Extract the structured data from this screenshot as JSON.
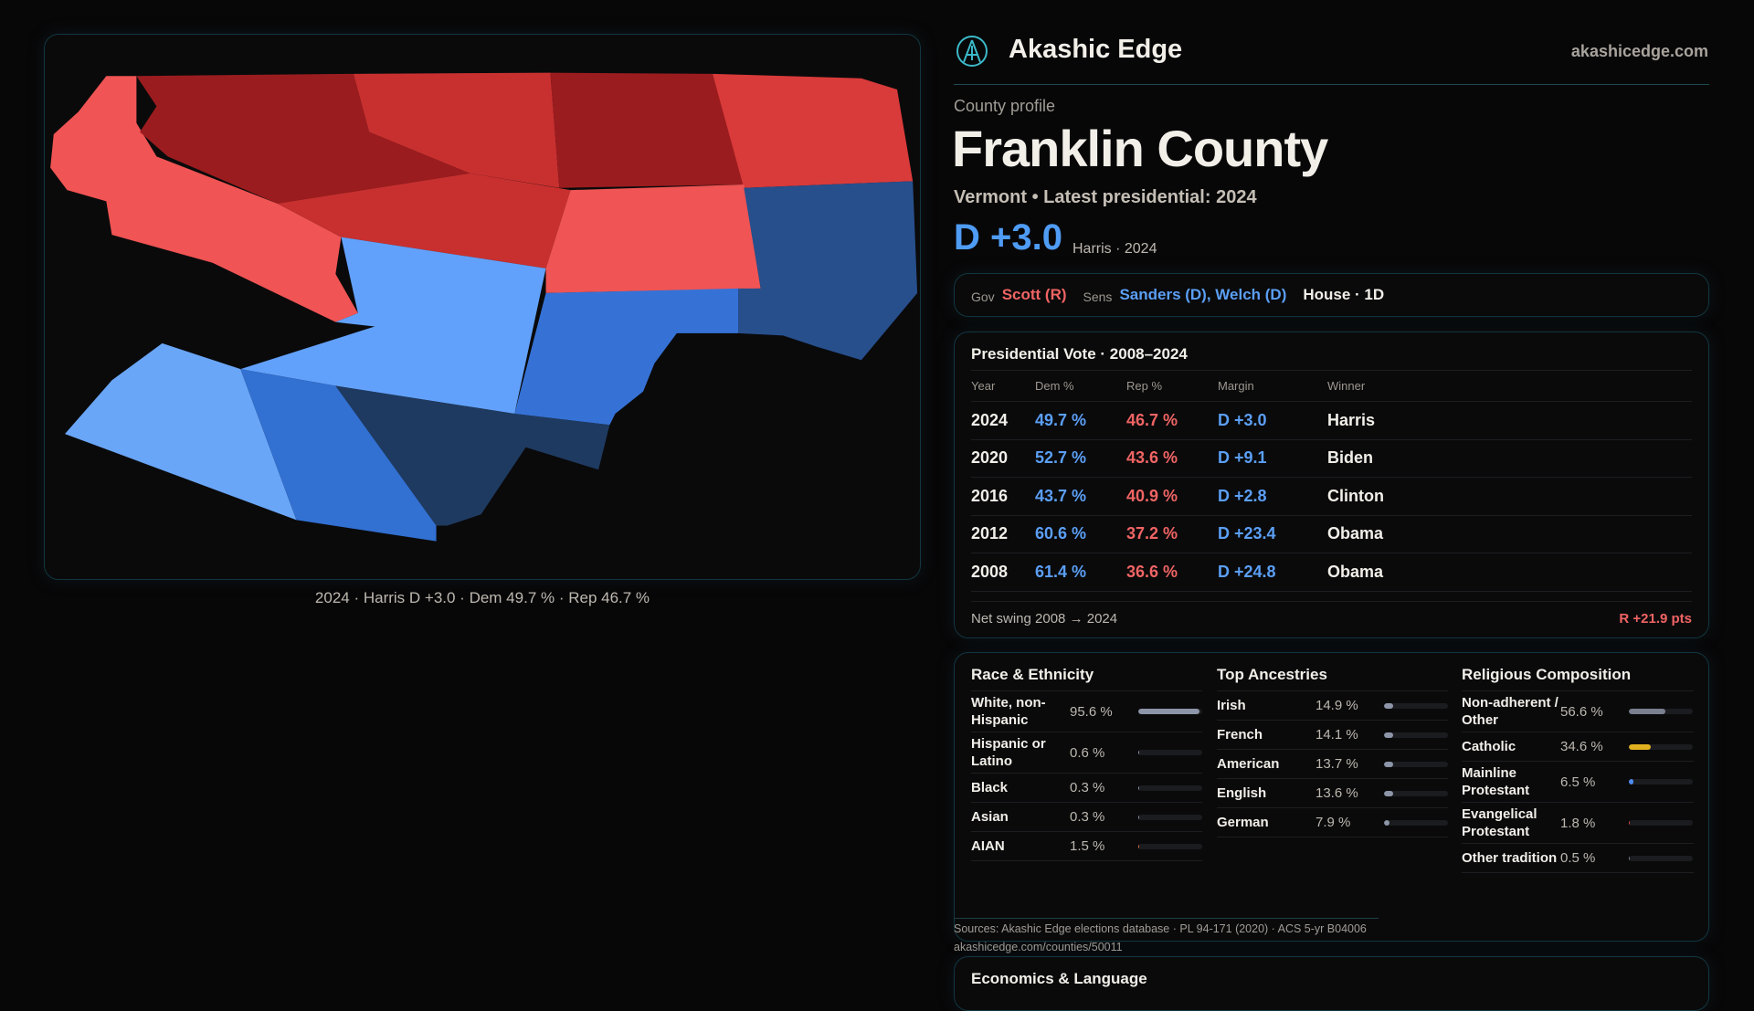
{
  "brand": {
    "name": "Akashic Edge",
    "site": "akashicedge.com",
    "logo_icon": "akashic-edge-logo-icon"
  },
  "map": {
    "caption": "2024 · Harris D +3.0 · Dem 49.7 % · Rep 46.7 %",
    "colors": {
      "dem_light": "#62a1fb",
      "dem_mid": "#3672d6",
      "dem_dark": "#1f3a60",
      "rep_light": "#f05454",
      "rep_mid": "#c8302f",
      "rep_dark": "#9b1c1f"
    }
  },
  "profile": {
    "eyebrow": "County profile",
    "title": "Franklin County",
    "subtitle": "Vermont • Latest presidential: 2024",
    "margin": "D +3.0",
    "margin_sub": "Harris · 2024"
  },
  "officials": {
    "gov_label": "Gov",
    "gov": "Scott (R)",
    "sens_label": "Sens",
    "sens": "Sanders (D), Welch (D)",
    "house": "House · 1D"
  },
  "presidential": {
    "title": "Presidential Vote · 2008–2024",
    "headers": [
      "Year",
      "Dem %",
      "Rep %",
      "Margin",
      "Winner"
    ],
    "rows": [
      [
        "2024",
        "49.7 %",
        "46.7 %",
        "D +3.0",
        "Harris"
      ],
      [
        "2020",
        "52.7 %",
        "43.6 %",
        "D +9.1",
        "Biden"
      ],
      [
        "2016",
        "43.7 %",
        "40.9 %",
        "D +2.8",
        "Clinton"
      ],
      [
        "2012",
        "60.6 %",
        "37.2 %",
        "D +23.4",
        "Obama"
      ],
      [
        "2008",
        "61.4 %",
        "36.6 %",
        "D +24.8",
        "Obama"
      ]
    ],
    "swing_label": "Net swing 2008 → 2024",
    "swing_value": "R +21.9 pts"
  },
  "race": {
    "title": "Race & Ethnicity",
    "rows": [
      {
        "name": "White, non-Hispanic",
        "value": "95.6 %",
        "pct": 95.6,
        "color": "#8d96a8"
      },
      {
        "name": "Hispanic or Latino",
        "value": "0.6 %",
        "pct": 0.6,
        "color": "#8d96a8"
      },
      {
        "name": "Black",
        "value": "0.3 %",
        "pct": 0.3,
        "color": "#8d96a8"
      },
      {
        "name": "Asian",
        "value": "0.3 %",
        "pct": 0.3,
        "color": "#8d96a8"
      },
      {
        "name": "AIAN",
        "value": "1.5 %",
        "pct": 1.5,
        "color": "#d9703a"
      }
    ]
  },
  "ancestry": {
    "title": "Top Ancestries",
    "rows": [
      {
        "name": "Irish",
        "value": "14.9 %",
        "pct": 14.9,
        "color": "#8d96a8"
      },
      {
        "name": "French",
        "value": "14.1 %",
        "pct": 14.1,
        "color": "#8d96a8"
      },
      {
        "name": "American",
        "value": "13.7 %",
        "pct": 13.7,
        "color": "#8d96a8"
      },
      {
        "name": "English",
        "value": "13.6 %",
        "pct": 13.6,
        "color": "#8d96a8"
      },
      {
        "name": "German",
        "value": "7.9 %",
        "pct": 7.9,
        "color": "#8d96a8"
      }
    ]
  },
  "religion": {
    "title": "Religious Composition",
    "rows": [
      {
        "name": "Non-adherent / Other",
        "value": "56.6 %",
        "pct": 56.6,
        "color": "#7a8090"
      },
      {
        "name": "Catholic",
        "value": "34.6 %",
        "pct": 34.6,
        "color": "#e0b020"
      },
      {
        "name": "Mainline Protestant",
        "value": "6.5 %",
        "pct": 6.5,
        "color": "#4f8cf0"
      },
      {
        "name": "Evangelical Protestant",
        "value": "1.8 %",
        "pct": 1.8,
        "color": "#e04848"
      },
      {
        "name": "Other tradition",
        "value": "0.5 %",
        "pct": 0.5,
        "color": "#7a8090"
      }
    ]
  },
  "sources": {
    "text": "Sources: Akashic Edge elections database · PL 94-171 (2020) · ACS 5-yr B04006",
    "url": "akashicedge.com/counties/50011"
  },
  "economics": {
    "title": "Economics & Language"
  }
}
